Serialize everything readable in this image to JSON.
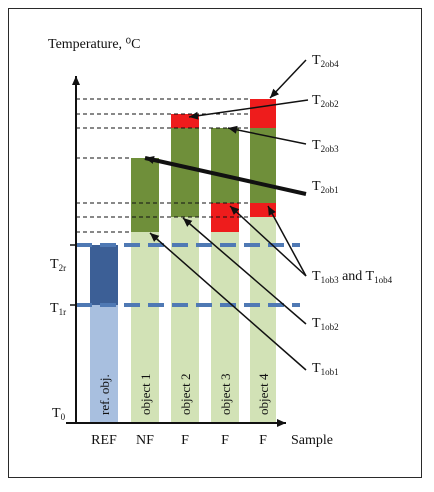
{
  "diagram": {
    "y_axis_title": "Temperature, ⁰C",
    "x_axis_title": "Sample",
    "categories": [
      "REF",
      "NF",
      "F",
      "F",
      "F"
    ],
    "bar_labels": [
      "ref. obj.",
      "object 1",
      "object 2",
      "object 3",
      "object 4"
    ],
    "left_labels": {
      "t_2r_main": "T",
      "t_2r_sub": "2r",
      "t_1r_main": "T",
      "t_1r_sub": "1r",
      "t_0_main": "T",
      "t_0_sub": "0"
    },
    "right_labels": [
      {
        "main": "T",
        "sub": "2ob4",
        "tail": ""
      },
      {
        "main": "T",
        "sub": "2ob2",
        "tail": ""
      },
      {
        "main": "T",
        "sub": "2ob3",
        "tail": ""
      },
      {
        "main": "T",
        "sub": "2ob1",
        "tail": ""
      },
      {
        "main": "T",
        "sub": "1ob3",
        "tail": " and T",
        "sub2": "1ob4"
      },
      {
        "main": "T",
        "sub": "1ob2",
        "tail": ""
      },
      {
        "main": "T",
        "sub": "1ob1",
        "tail": ""
      }
    ],
    "colors": {
      "light_green": "#d2e2b6",
      "dark_green": "#6f8f3a",
      "red": "#ee1c1c",
      "light_blue": "#a8bfdf",
      "dark_blue": "#3c5f96",
      "dashed_blue": "#4f79b4"
    }
  }
}
